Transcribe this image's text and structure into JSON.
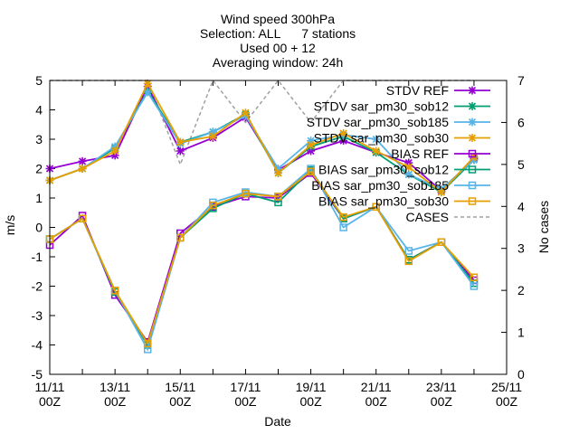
{
  "chart_data": {
    "type": "line",
    "title_lines": [
      "Wind speed 300hPa",
      "Selection: ALL      7 stations",
      "Used 00 + 12",
      "Averaging window: 24h"
    ],
    "xlabel": "Date",
    "ylabel": "m/s",
    "y2label": "No cases",
    "xlim": [
      0,
      14
    ],
    "ylim": [
      -5,
      5
    ],
    "y2lim": [
      0,
      7
    ],
    "grid": false,
    "legend_position": "top-right",
    "x_ticks": [
      {
        "x": 0,
        "line1": "11/11",
        "line2": "00Z"
      },
      {
        "x": 2,
        "line1": "13/11",
        "line2": "00Z"
      },
      {
        "x": 4,
        "line1": "15/11",
        "line2": "00Z"
      },
      {
        "x": 6,
        "line1": "17/11",
        "line2": "00Z"
      },
      {
        "x": 8,
        "line1": "19/11",
        "line2": "00Z"
      },
      {
        "x": 10,
        "line1": "21/11",
        "line2": "00Z"
      },
      {
        "x": 12,
        "line1": "23/11",
        "line2": "00Z"
      },
      {
        "x": 14,
        "line1": "25/11",
        "line2": "00Z"
      }
    ],
    "y_ticks": [
      {
        "v": 5,
        "label": "5"
      },
      {
        "v": 4,
        "label": "4"
      },
      {
        "v": 3,
        "label": "3"
      },
      {
        "v": 2,
        "label": "2"
      },
      {
        "v": 1,
        "label": "1"
      },
      {
        "v": 0,
        "label": "0"
      },
      {
        "v": -1,
        "label": "-1"
      },
      {
        "v": -2,
        "label": "-2"
      },
      {
        "v": -3,
        "label": "-3"
      },
      {
        "v": -4,
        "label": "-4"
      },
      {
        "v": -5,
        "label": "-5"
      }
    ],
    "y2_ticks": [
      {
        "v": 7,
        "label": "7"
      },
      {
        "v": 6,
        "label": "6"
      },
      {
        "v": 5,
        "label": "5"
      },
      {
        "v": 4,
        "label": "4"
      },
      {
        "v": 3,
        "label": "3"
      },
      {
        "v": 2,
        "label": "2"
      },
      {
        "v": 1,
        "label": "1"
      },
      {
        "v": 0,
        "label": "0"
      }
    ],
    "series": [
      {
        "name": "STDV REF",
        "color": "#9400d3",
        "marker": "star",
        "axis": "y",
        "x": [
          0,
          1,
          2,
          3,
          4,
          5,
          6,
          7,
          8,
          9,
          10,
          11,
          12,
          13
        ],
        "y": [
          2.0,
          2.25,
          2.45,
          4.8,
          2.6,
          3.05,
          3.75,
          1.95,
          2.6,
          2.95,
          2.55,
          2.2,
          1.25,
          2.35
        ]
      },
      {
        "name": "STDV sar_pm30_sob12",
        "color": "#009e73",
        "marker": "star",
        "axis": "y",
        "x": [
          0,
          1,
          2,
          3,
          4,
          5,
          6,
          7,
          8,
          9,
          10,
          11,
          12,
          13
        ],
        "y": [
          1.6,
          2.0,
          2.7,
          4.65,
          2.9,
          3.25,
          3.85,
          1.85,
          2.75,
          3.1,
          2.55,
          1.8,
          1.2,
          2.3
        ]
      },
      {
        "name": "STDV sar_pm30_sob185",
        "color": "#56b4e9",
        "marker": "star",
        "axis": "y",
        "x": [
          0,
          1,
          2,
          3,
          4,
          5,
          6,
          7,
          8,
          9,
          10,
          11,
          12,
          13
        ],
        "y": [
          1.6,
          2.0,
          2.75,
          4.6,
          2.85,
          3.25,
          3.8,
          2.0,
          2.95,
          3.15,
          3.0,
          1.8,
          1.3,
          2.3
        ]
      },
      {
        "name": "STDV sar_pm30_sob30",
        "color": "#e69f00",
        "marker": "star",
        "axis": "y",
        "x": [
          0,
          1,
          2,
          3,
          4,
          5,
          6,
          7,
          8,
          9,
          10,
          11,
          12,
          13
        ],
        "y": [
          1.6,
          2.0,
          2.6,
          4.9,
          2.9,
          3.1,
          3.9,
          1.85,
          2.8,
          3.2,
          2.6,
          2.05,
          1.2,
          2.4
        ]
      },
      {
        "name": "BIAS REF",
        "color": "#9400d3",
        "marker": "square",
        "axis": "y",
        "x": [
          0,
          1,
          2,
          3,
          4,
          5,
          6,
          7,
          8,
          9,
          10,
          11,
          12,
          13
        ],
        "y": [
          -0.6,
          0.4,
          -2.3,
          -3.9,
          -0.2,
          0.7,
          1.05,
          1.0,
          1.85,
          0.3,
          0.7,
          -1.1,
          -0.5,
          -1.8
        ]
      },
      {
        "name": "BIAS sar_pm30_sob12",
        "color": "#009e73",
        "marker": "square",
        "axis": "y",
        "x": [
          0,
          1,
          2,
          3,
          4,
          5,
          6,
          7,
          8,
          9,
          10,
          11,
          12,
          13
        ],
        "y": [
          -0.4,
          0.3,
          -2.2,
          -4.0,
          -0.35,
          0.65,
          1.15,
          0.85,
          1.95,
          0.3,
          0.7,
          -1.1,
          -0.5,
          -1.9
        ]
      },
      {
        "name": "BIAS sar_pm30_sob185",
        "color": "#56b4e9",
        "marker": "square",
        "axis": "y",
        "x": [
          0,
          1,
          2,
          3,
          4,
          5,
          6,
          7,
          8,
          9,
          10,
          11,
          12,
          13
        ],
        "y": [
          -0.4,
          0.3,
          -2.15,
          -4.15,
          -0.35,
          0.85,
          1.2,
          1.05,
          2.0,
          0.0,
          0.7,
          -0.8,
          -0.5,
          -2.0
        ]
      },
      {
        "name": "BIAS sar_pm30_sob30",
        "color": "#e69f00",
        "marker": "square",
        "axis": "y",
        "x": [
          0,
          1,
          2,
          3,
          4,
          5,
          6,
          7,
          8,
          9,
          10,
          11,
          12,
          13
        ],
        "y": [
          -0.4,
          0.3,
          -2.15,
          -3.95,
          -0.35,
          0.75,
          1.15,
          1.05,
          1.9,
          0.35,
          0.7,
          -1.15,
          -0.5,
          -1.7
        ]
      },
      {
        "name": "CASES",
        "color": "#a0a0a0",
        "marker": "none",
        "dashed": true,
        "axis": "y2",
        "x": [
          0,
          1,
          2,
          3,
          4,
          5,
          6,
          7,
          8,
          9,
          10,
          11,
          12,
          13
        ],
        "y": [
          7,
          7,
          7,
          7,
          5,
          7,
          6,
          7,
          6,
          7,
          7,
          7,
          7,
          7
        ]
      }
    ]
  }
}
